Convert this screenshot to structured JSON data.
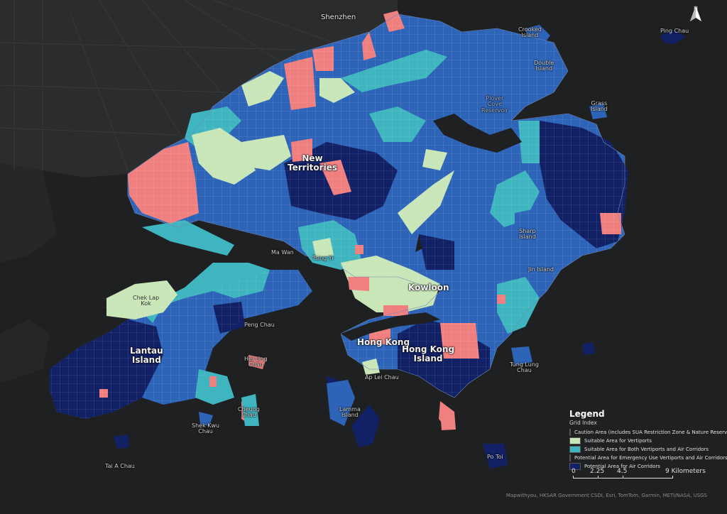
{
  "colors": {
    "background": "#1f2021",
    "land": "#2a2b2d",
    "caution": "#f08080",
    "vertiports": "#c8e6b8",
    "both": "#3fb5c0",
    "emergency": "#2d64b8",
    "air_corridors": "#122066"
  },
  "north_arrow": {
    "label": "N",
    "icon": "north-arrow-icon"
  },
  "place_labels": {
    "shenzhen": "Shenzhen",
    "new_territories": "New\nTerritories",
    "kowloon": "Kowloon",
    "hong_kong": "Hong Kong",
    "hong_kong_island": "Hong Kong\nIsland",
    "lantau_island": "Lantau\nIsland",
    "ping_chau": "Ping Chau",
    "crooked_island": "Crooked\nIsland",
    "double_island": "Double\nIsland",
    "grass_island": "Grass\nIsland",
    "plover_cove": "Plover\nCove\nReservoir",
    "sharp_island": "Sharp\nIsland",
    "jin_island": "Jin Island",
    "ma_wan": "Ma Wan",
    "tsing_yi": "Tsing Yi",
    "chek_lap_kok": "Chek Lap\nKok",
    "peng_chau": "Peng Chau",
    "hei_ling_chau": "Hei Ling\nChau",
    "cheung_chau": "Cheung\nChau",
    "shek_kwu_chau": "Shek Kwu\nChau",
    "lamma_island": "Lamma\nIsland",
    "ap_lei_chau": "Ap Lei Chau",
    "tung_lung_chau": "Tung Lung\nChau",
    "po_toi": "Po Toi",
    "tai_a_chau": "Tai A Chau"
  },
  "legend": {
    "title": "Legend",
    "subtitle": "Grid Index",
    "items": [
      {
        "label": "Caution Area (includes SUA Restriction Zone & Nature Reserve)",
        "color": "#f08080"
      },
      {
        "label": "Suitable Area for Vertiports",
        "color": "#c8e6b8"
      },
      {
        "label": "Suitable Area for Both Vertiports and Air Corridors",
        "color": "#3fb5c0"
      },
      {
        "label": "Potential Area for Emergency Use Vertiports and Air Corridors",
        "color": "#2d64b8"
      },
      {
        "label": "Potential Area for Air Corridors",
        "color": "#122066"
      }
    ]
  },
  "scale_bar": {
    "ticks": [
      "0",
      "2.25",
      "4.5",
      "9 Kilometers"
    ]
  },
  "credits": "Mapwithyou, HKSAR Government CSDI, Esri, TomTom, Garmin, METI/NASA, USGS"
}
